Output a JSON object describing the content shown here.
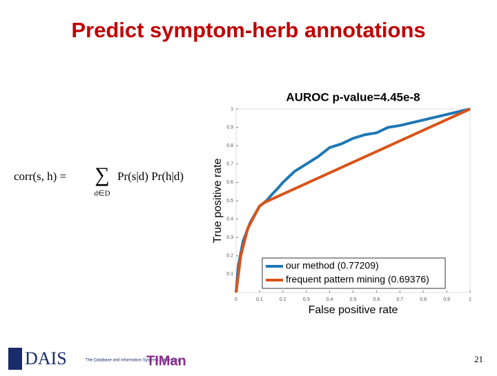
{
  "slide_title": "Predict symptom-herb annotations",
  "formula": {
    "lhs": "corr(s, h) =",
    "sum": "∑",
    "sub": "d∈D",
    "rhs": "Pr(s|d) Pr(h|d)"
  },
  "footer": {
    "logo": "DAIS",
    "lab": "The Database and Information Systems Laboratory",
    "logo2": "TIMan",
    "page": "21"
  },
  "chart_data": {
    "type": "line",
    "title": "AUROC p-value=4.45e-8",
    "x_label": "False positive rate",
    "y_label": "True positive rate",
    "xlim": [
      0,
      1
    ],
    "ylim": [
      0,
      1
    ],
    "xticks": [
      0,
      0.1,
      0.2,
      0.3,
      0.4,
      0.5,
      0.6,
      0.7,
      0.8,
      0.9,
      1
    ],
    "yticks": [
      0.1,
      0.2,
      0.3,
      0.4,
      0.5,
      0.6,
      0.7,
      0.8,
      0.9,
      1
    ],
    "grid": false,
    "legend": "lower right",
    "series": [
      {
        "name": "our method (0.77209)",
        "color": "#1f77b4",
        "x": [
          0,
          0.01,
          0.03,
          0.06,
          0.1,
          0.13,
          0.15,
          0.18,
          0.2,
          0.25,
          0.3,
          0.35,
          0.4,
          0.45,
          0.5,
          0.55,
          0.6,
          0.65,
          0.7,
          0.8,
          0.9,
          1
        ],
        "values": [
          0,
          0.15,
          0.28,
          0.38,
          0.47,
          0.5,
          0.53,
          0.57,
          0.6,
          0.66,
          0.7,
          0.74,
          0.79,
          0.81,
          0.84,
          0.86,
          0.87,
          0.9,
          0.91,
          0.94,
          0.97,
          1
        ]
      },
      {
        "name": "frequent pattern mining (0.69376)",
        "color": "#d95319",
        "x": [
          0,
          0.02,
          0.05,
          0.1,
          0.12,
          1
        ],
        "values": [
          0,
          0.2,
          0.35,
          0.47,
          0.49,
          1
        ]
      }
    ]
  }
}
